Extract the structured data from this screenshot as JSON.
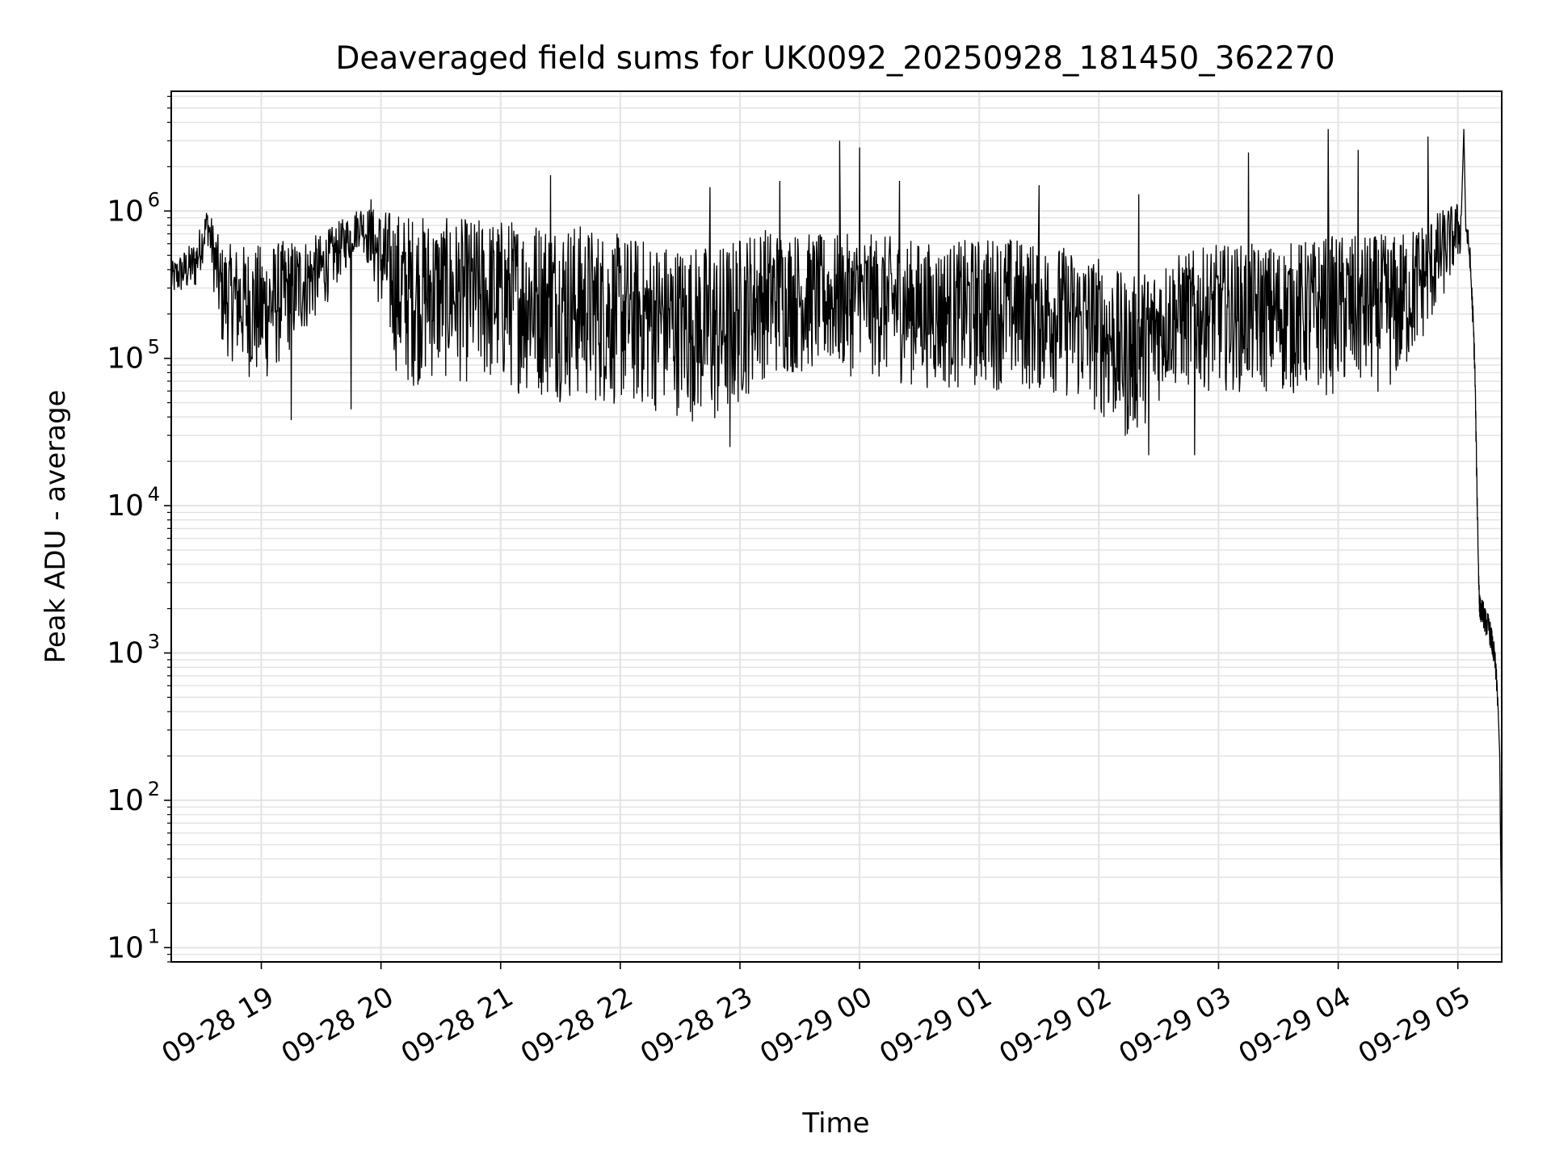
{
  "chart_data": {
    "type": "line",
    "title": "Deaveraged field sums for UK0092_20250928_181450_362270",
    "xlabel": "Time",
    "ylabel": "Peak ADU - average",
    "yscale": "log",
    "ylim": [
      8,
      6500000.0
    ],
    "xlim": [
      "2025-09-28T18:14:50",
      "2025-09-29T05:22:00"
    ],
    "grid": true,
    "legend": "none",
    "line_color": "#000000",
    "grid_color": "#e3e3e3",
    "x_ticks": [
      {
        "t": "2025-09-28T19:00:00",
        "label": "09-28 19"
      },
      {
        "t": "2025-09-28T20:00:00",
        "label": "09-28 20"
      },
      {
        "t": "2025-09-28T21:00:00",
        "label": "09-28 21"
      },
      {
        "t": "2025-09-28T22:00:00",
        "label": "09-28 22"
      },
      {
        "t": "2025-09-28T23:00:00",
        "label": "09-28 23"
      },
      {
        "t": "2025-09-29T00:00:00",
        "label": "09-29 00"
      },
      {
        "t": "2025-09-29T01:00:00",
        "label": "09-29 01"
      },
      {
        "t": "2025-09-29T02:00:00",
        "label": "09-29 02"
      },
      {
        "t": "2025-09-29T03:00:00",
        "label": "09-29 03"
      },
      {
        "t": "2025-09-29T04:00:00",
        "label": "09-29 04"
      },
      {
        "t": "2025-09-29T05:00:00",
        "label": "09-29 05"
      }
    ],
    "y_ticks": [
      {
        "value": 10,
        "base": "10",
        "exp": "1"
      },
      {
        "value": 100,
        "base": "10",
        "exp": "2"
      },
      {
        "value": 1000,
        "base": "10",
        "exp": "3"
      },
      {
        "value": 10000,
        "base": "10",
        "exp": "4"
      },
      {
        "value": 100000,
        "base": "10",
        "exp": "5"
      },
      {
        "value": 1000000,
        "base": "10",
        "exp": "6"
      }
    ],
    "series": [
      {
        "envelope": [
          {
            "t": "2025-09-28T18:14:50",
            "low": 250000.0,
            "high": 450000.0
          },
          {
            "t": "2025-09-28T18:27:00",
            "low": 280000.0,
            "high": 650000.0
          },
          {
            "t": "2025-09-28T18:33:00",
            "low": 600000.0,
            "high": 1100000.0
          },
          {
            "t": "2025-09-28T18:40:00",
            "low": 110000.0,
            "high": 600000.0
          },
          {
            "t": "2025-09-28T19:00:00",
            "low": 60000.0,
            "high": 600000.0
          },
          {
            "t": "2025-09-28T19:30:00",
            "low": 200000.0,
            "high": 700000.0
          },
          {
            "t": "2025-09-28T19:50:00",
            "low": 600000.0,
            "high": 1100000.0
          },
          {
            "t": "2025-09-28T20:10:00",
            "low": 60000.0,
            "high": 1000000.0
          },
          {
            "t": "2025-09-28T20:30:00",
            "low": 70000.0,
            "high": 900000.0
          },
          {
            "t": "2025-09-28T21:00:00",
            "low": 60000.0,
            "high": 900000.0
          },
          {
            "t": "2025-09-28T21:30:00",
            "low": 50000.0,
            "high": 900000.0
          },
          {
            "t": "2025-09-28T22:00:00",
            "low": 45000.0,
            "high": 700000.0
          },
          {
            "t": "2025-09-28T22:30:00",
            "low": 40000.0,
            "high": 600000.0
          },
          {
            "t": "2025-09-28T22:50:00",
            "low": 30000.0,
            "high": 600000.0
          },
          {
            "t": "2025-09-28T23:10:00",
            "low": 70000.0,
            "high": 800000.0
          },
          {
            "t": "2025-09-28T23:40:00",
            "low": 80000.0,
            "high": 700000.0
          },
          {
            "t": "2025-09-29T00:10:00",
            "low": 70000.0,
            "high": 700000.0
          },
          {
            "t": "2025-09-29T00:40:00",
            "low": 60000.0,
            "high": 600000.0
          },
          {
            "t": "2025-09-29T01:10:00",
            "low": 60000.0,
            "high": 700000.0
          },
          {
            "t": "2025-09-29T01:40:00",
            "low": 55000.0,
            "high": 600000.0
          },
          {
            "t": "2025-09-29T02:00:00",
            "low": 40000.0,
            "high": 500000.0
          },
          {
            "t": "2025-09-29T02:15:00",
            "low": 25000.0,
            "high": 350000.0
          },
          {
            "t": "2025-09-29T02:35:00",
            "low": 60000.0,
            "high": 500000.0
          },
          {
            "t": "2025-09-29T03:00:00",
            "low": 60000.0,
            "high": 600000.0
          },
          {
            "t": "2025-09-29T03:30:00",
            "low": 55000.0,
            "high": 600000.0
          },
          {
            "t": "2025-09-29T04:00:00",
            "low": 55000.0,
            "high": 700000.0
          },
          {
            "t": "2025-09-29T04:30:00",
            "low": 60000.0,
            "high": 700000.0
          },
          {
            "t": "2025-09-29T04:50:00",
            "low": 200000.0,
            "high": 1000000.0
          },
          {
            "t": "2025-09-29T05:02:00",
            "low": 500000.0,
            "high": 1200000.0
          }
        ],
        "spikes": [
          {
            "t": "2025-09-28T19:55:00",
            "value": 1200000.0
          },
          {
            "t": "2025-09-28T21:25:00",
            "value": 1750000.0
          },
          {
            "t": "2025-09-28T22:45:00",
            "value": 1450000.0
          },
          {
            "t": "2025-09-28T23:20:00",
            "value": 1600000.0
          },
          {
            "t": "2025-09-28T23:50:00",
            "value": 3000000.0
          },
          {
            "t": "2025-09-29T00:00:00",
            "value": 2700000.0
          },
          {
            "t": "2025-09-29T00:20:00",
            "value": 1600000.0
          },
          {
            "t": "2025-09-29T01:30:00",
            "value": 1500000.0
          },
          {
            "t": "2025-09-29T02:20:00",
            "value": 1300000.0
          },
          {
            "t": "2025-09-29T03:15:00",
            "value": 2500000.0
          },
          {
            "t": "2025-09-29T03:55:00",
            "value": 3600000.0
          },
          {
            "t": "2025-09-29T04:10:00",
            "value": 2600000.0
          },
          {
            "t": "2025-09-29T04:45:00",
            "value": 3200000.0
          },
          {
            "t": "2025-09-29T05:03:00",
            "value": 3600000.0
          }
        ],
        "dips": [
          {
            "t": "2025-09-28T19:15:00",
            "value": 38000.0
          },
          {
            "t": "2025-09-28T19:45:00",
            "value": 45000.0
          },
          {
            "t": "2025-09-28T22:55:00",
            "value": 25000.0
          },
          {
            "t": "2025-09-29T02:25:00",
            "value": 22000.0
          },
          {
            "t": "2025-09-29T02:48:00",
            "value": 22000.0
          }
        ],
        "tail": [
          {
            "t": "2025-09-29T05:04:00",
            "value": 800000.0
          },
          {
            "t": "2025-09-29T05:06:00",
            "value": 500000.0
          },
          {
            "t": "2025-09-29T05:07:30",
            "value": 200000.0
          },
          {
            "t": "2025-09-29T05:08:30",
            "value": 90000.0
          },
          {
            "t": "2025-09-29T05:09:30",
            "value": 15000.0
          },
          {
            "t": "2025-09-29T05:10:30",
            "value": 3000.0
          },
          {
            "t": "2025-09-29T05:11:00",
            "value": 2000.0
          },
          {
            "t": "2025-09-29T05:12:30",
            "value": 1900.0
          },
          {
            "t": "2025-09-29T05:14:00",
            "value": 1600.0
          },
          {
            "t": "2025-09-29T05:15:30",
            "value": 1500.0
          },
          {
            "t": "2025-09-29T05:17:00",
            "value": 1200.0
          },
          {
            "t": "2025-09-29T05:18:30",
            "value": 900.0
          },
          {
            "t": "2025-09-29T05:20:00",
            "value": 500.0
          },
          {
            "t": "2025-09-29T05:21:00",
            "value": 200.0
          },
          {
            "t": "2025-09-29T05:21:30",
            "value": 40.0
          },
          {
            "t": "2025-09-29T05:21:55",
            "value": 15.0
          }
        ]
      }
    ]
  }
}
